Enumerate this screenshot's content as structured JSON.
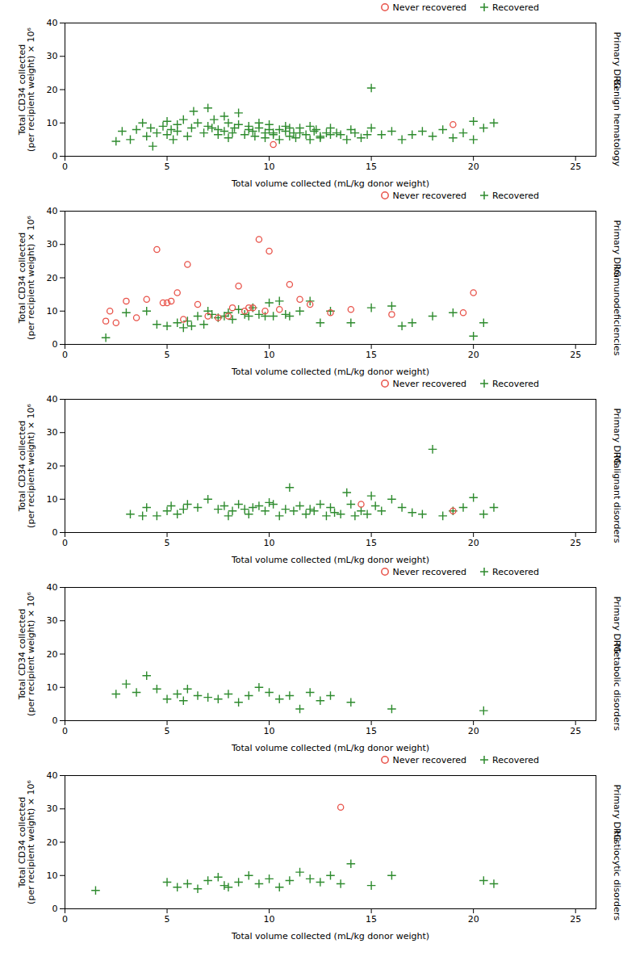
{
  "chart_data": [
    {
      "type": "scatter",
      "xlabel": "Total volume collected (mL/kg donor weight)",
      "ylabel": "Total CD34 collected\n(per recipient weight) × 10⁶",
      "xlim": [
        0,
        26
      ],
      "ylim": [
        0,
        40
      ],
      "xticks": [
        0,
        5,
        10,
        15,
        20,
        25
      ],
      "yticks": [
        0,
        10,
        20,
        30,
        40
      ],
      "grid": false,
      "legend": "upper right",
      "annotations": [
        "Primary DRG",
        "Benign hematology"
      ],
      "series": [
        {
          "name": "Never recovered",
          "color": "#e8534a",
          "marker": "circle",
          "x": [
            10.2,
            19.0
          ],
          "y": [
            3.5,
            9.5
          ]
        },
        {
          "name": "Recovered",
          "color": "#2e8b2e",
          "marker": "plus",
          "x": [
            2.5,
            2.8,
            3.2,
            3.5,
            3.8,
            4.0,
            4.2,
            4.3,
            4.5,
            4.8,
            5.0,
            5.0,
            5.2,
            5.3,
            5.5,
            5.5,
            5.8,
            6.0,
            6.2,
            6.3,
            6.5,
            6.8,
            7.0,
            7.0,
            7.2,
            7.3,
            7.5,
            7.5,
            7.8,
            7.8,
            8.0,
            8.0,
            8.2,
            8.3,
            8.5,
            8.5,
            8.8,
            9.0,
            9.0,
            9.2,
            9.3,
            9.5,
            9.5,
            9.8,
            9.8,
            10.0,
            10.0,
            10.2,
            10.2,
            10.5,
            10.5,
            10.8,
            10.8,
            11.0,
            11.0,
            11.2,
            11.3,
            11.5,
            11.5,
            11.8,
            12.0,
            12.0,
            12.2,
            12.3,
            12.5,
            12.5,
            12.8,
            13.0,
            13.0,
            13.3,
            13.5,
            13.8,
            14.0,
            14.2,
            14.5,
            14.8,
            15.0,
            15.0,
            15.5,
            16.0,
            16.5,
            17.0,
            17.5,
            18.0,
            18.5,
            19.0,
            19.5,
            20.0,
            20.0,
            20.5,
            21.0
          ],
          "y": [
            4.5,
            7.5,
            5.0,
            8.0,
            10.0,
            6.0,
            8.5,
            3.0,
            7.0,
            9.0,
            6.5,
            10.5,
            8.0,
            5.0,
            9.5,
            7.5,
            11.0,
            6.0,
            8.5,
            13.5,
            10.0,
            7.0,
            9.0,
            14.5,
            8.5,
            11.0,
            6.5,
            8.0,
            7.5,
            12.0,
            5.5,
            10.0,
            7.0,
            8.5,
            9.5,
            13.0,
            6.5,
            8.0,
            9.0,
            7.5,
            6.0,
            8.5,
            10.0,
            5.5,
            7.0,
            8.0,
            9.5,
            6.5,
            7.0,
            5.0,
            8.0,
            7.5,
            9.0,
            6.0,
            8.5,
            7.0,
            5.5,
            8.5,
            7.0,
            6.5,
            9.0,
            5.0,
            7.5,
            8.0,
            6.0,
            5.5,
            7.0,
            8.5,
            6.5,
            7.0,
            6.5,
            5.0,
            8.0,
            7.0,
            5.5,
            6.5,
            20.5,
            8.5,
            6.5,
            7.5,
            5.0,
            6.5,
            7.5,
            6.0,
            8.0,
            5.5,
            7.0,
            10.5,
            5.0,
            8.5,
            10.0
          ]
        }
      ]
    },
    {
      "type": "scatter",
      "xlabel": "Total volume collected (mL/kg donor weight)",
      "ylabel": "Total CD34 collected\n(per recipient weight) × 10⁶",
      "xlim": [
        0,
        26
      ],
      "ylim": [
        0,
        40
      ],
      "xticks": [
        0,
        5,
        10,
        15,
        20,
        25
      ],
      "yticks": [
        0,
        10,
        20,
        30,
        40
      ],
      "grid": false,
      "legend": "upper right",
      "annotations": [
        "Primary DRG",
        "Immunodeficiencies"
      ],
      "series": [
        {
          "name": "Never recovered",
          "color": "#e8534a",
          "marker": "circle",
          "x": [
            2.0,
            2.2,
            2.5,
            3.0,
            3.5,
            4.0,
            4.5,
            4.8,
            5.0,
            5.2,
            5.5,
            5.8,
            6.0,
            6.5,
            7.0,
            7.5,
            8.0,
            8.2,
            8.5,
            8.8,
            9.0,
            9.2,
            9.5,
            9.8,
            10.0,
            10.5,
            11.0,
            11.5,
            12.0,
            13.0,
            14.0,
            16.0,
            19.5,
            20.0
          ],
          "y": [
            7.0,
            10.0,
            6.5,
            13.0,
            8.0,
            13.5,
            28.5,
            12.5,
            12.5,
            13.0,
            15.5,
            7.5,
            24.0,
            12.0,
            8.5,
            8.0,
            8.5,
            11.0,
            17.5,
            10.0,
            11.0,
            11.0,
            31.5,
            10.0,
            28.0,
            10.5,
            18.0,
            13.5,
            12.0,
            9.5,
            10.5,
            9.0,
            9.5,
            15.5
          ]
        },
        {
          "name": "Recovered",
          "color": "#2e8b2e",
          "marker": "plus",
          "x": [
            2.0,
            3.0,
            4.0,
            4.5,
            5.0,
            5.5,
            5.8,
            6.0,
            6.2,
            6.5,
            6.8,
            7.0,
            7.2,
            7.5,
            7.8,
            8.0,
            8.2,
            8.5,
            8.8,
            9.0,
            9.2,
            9.5,
            9.8,
            10.0,
            10.2,
            10.5,
            10.8,
            11.0,
            11.5,
            12.0,
            12.5,
            13.0,
            14.0,
            15.0,
            16.0,
            16.5,
            17.0,
            18.0,
            19.0,
            20.0,
            20.5
          ],
          "y": [
            2.0,
            9.5,
            10.0,
            6.0,
            5.5,
            6.5,
            5.0,
            7.0,
            5.5,
            8.5,
            6.0,
            10.0,
            9.0,
            8.0,
            8.5,
            9.5,
            7.5,
            10.5,
            9.0,
            8.5,
            11.0,
            9.0,
            8.5,
            12.5,
            8.5,
            13.0,
            9.0,
            8.5,
            10.0,
            13.0,
            6.5,
            10.0,
            6.5,
            11.0,
            11.5,
            5.5,
            6.5,
            8.5,
            9.5,
            2.5,
            6.5
          ]
        }
      ]
    },
    {
      "type": "scatter",
      "xlabel": "Total volume collected (mL/kg donor weight)",
      "ylabel": "Total CD34 collected\n(per recipient weight) × 10⁶",
      "xlim": [
        0,
        26
      ],
      "ylim": [
        0,
        40
      ],
      "xticks": [
        0,
        5,
        10,
        15,
        20,
        25
      ],
      "yticks": [
        0,
        10,
        20,
        30,
        40
      ],
      "grid": false,
      "legend": "upper right",
      "annotations": [
        "Primary DRG",
        "Malignant disorders"
      ],
      "series": [
        {
          "name": "Never recovered",
          "color": "#e8534a",
          "marker": "circle",
          "x": [
            14.5,
            19.0
          ],
          "y": [
            8.5,
            6.5
          ]
        },
        {
          "name": "Recovered",
          "color": "#2e8b2e",
          "marker": "plus",
          "x": [
            3.2,
            3.8,
            4.0,
            4.5,
            5.0,
            5.2,
            5.5,
            5.8,
            6.0,
            6.5,
            7.0,
            7.5,
            7.8,
            8.0,
            8.2,
            8.5,
            8.8,
            9.0,
            9.2,
            9.5,
            9.8,
            10.0,
            10.2,
            10.5,
            10.8,
            11.0,
            11.2,
            11.5,
            11.8,
            12.0,
            12.2,
            12.5,
            12.8,
            13.0,
            13.2,
            13.5,
            13.8,
            14.0,
            14.2,
            14.5,
            14.8,
            15.0,
            15.2,
            15.5,
            16.0,
            16.5,
            17.0,
            17.5,
            18.0,
            18.5,
            19.0,
            19.5,
            20.0,
            20.5,
            21.0
          ],
          "y": [
            5.5,
            5.0,
            7.5,
            5.0,
            6.5,
            8.0,
            5.5,
            7.0,
            8.5,
            7.5,
            10.0,
            7.0,
            8.0,
            5.0,
            6.5,
            8.5,
            7.0,
            5.5,
            7.5,
            8.0,
            6.5,
            9.0,
            8.5,
            5.0,
            7.0,
            13.5,
            6.5,
            8.0,
            5.5,
            7.0,
            6.5,
            8.5,
            5.0,
            7.5,
            6.0,
            5.5,
            12.0,
            8.5,
            5.0,
            6.5,
            5.5,
            11.0,
            8.0,
            6.5,
            10.0,
            7.5,
            6.0,
            5.5,
            25.0,
            5.0,
            6.5,
            7.5,
            10.5,
            5.5,
            7.5
          ]
        }
      ]
    },
    {
      "type": "scatter",
      "xlabel": "Total volume collected (mL/kg donor weight)",
      "ylabel": "Total CD34 collected\n(per recipient weight) × 10⁶",
      "xlim": [
        0,
        26
      ],
      "ylim": [
        0,
        40
      ],
      "xticks": [
        0,
        5,
        10,
        15,
        20,
        25
      ],
      "yticks": [
        0,
        10,
        20,
        30,
        40
      ],
      "grid": false,
      "legend": "upper right",
      "annotations": [
        "Primary DRG",
        "Metabolic disorders"
      ],
      "series": [
        {
          "name": "Never recovered",
          "color": "#e8534a",
          "marker": "circle",
          "x": [],
          "y": []
        },
        {
          "name": "Recovered",
          "color": "#2e8b2e",
          "marker": "plus",
          "x": [
            2.5,
            3.0,
            3.5,
            4.0,
            4.5,
            5.0,
            5.5,
            5.8,
            6.0,
            6.5,
            7.0,
            7.5,
            8.0,
            8.5,
            9.0,
            9.5,
            10.0,
            10.5,
            11.0,
            11.5,
            12.0,
            12.5,
            13.0,
            14.0,
            16.0,
            20.5
          ],
          "y": [
            8.0,
            11.0,
            8.5,
            13.5,
            9.5,
            6.5,
            8.0,
            6.0,
            9.5,
            7.5,
            7.0,
            6.5,
            8.0,
            5.5,
            7.5,
            10.0,
            8.5,
            6.5,
            7.5,
            3.5,
            8.5,
            6.0,
            7.5,
            5.5,
            3.5,
            3.0
          ]
        }
      ]
    },
    {
      "type": "scatter",
      "xlabel": "Total volume collected (mL/kg donor weight)",
      "ylabel": "Total CD34 collected\n(per recipient weight) × 10⁶",
      "xlim": [
        0,
        26
      ],
      "ylim": [
        0,
        40
      ],
      "xticks": [
        0,
        5,
        10,
        15,
        20,
        25
      ],
      "yticks": [
        0,
        10,
        20,
        30,
        40
      ],
      "grid": false,
      "legend": "upper right",
      "annotations": [
        "Primary DRG",
        "Histiocytic disorders"
      ],
      "series": [
        {
          "name": "Never recovered",
          "color": "#e8534a",
          "marker": "circle",
          "x": [
            13.5
          ],
          "y": [
            30.5
          ]
        },
        {
          "name": "Recovered",
          "color": "#2e8b2e",
          "marker": "plus",
          "x": [
            1.5,
            5.0,
            5.5,
            6.0,
            6.5,
            7.0,
            7.5,
            7.8,
            8.0,
            8.5,
            9.0,
            9.5,
            10.0,
            10.5,
            11.0,
            11.5,
            12.0,
            12.5,
            13.0,
            13.5,
            14.0,
            15.0,
            16.0,
            20.5,
            21.0
          ],
          "y": [
            5.5,
            8.0,
            6.5,
            7.5,
            6.0,
            8.5,
            9.5,
            7.0,
            6.5,
            8.0,
            10.0,
            7.5,
            9.0,
            6.5,
            8.5,
            11.0,
            9.0,
            8.0,
            10.0,
            7.5,
            13.5,
            7.0,
            10.0,
            8.5,
            7.5
          ]
        }
      ]
    }
  ]
}
